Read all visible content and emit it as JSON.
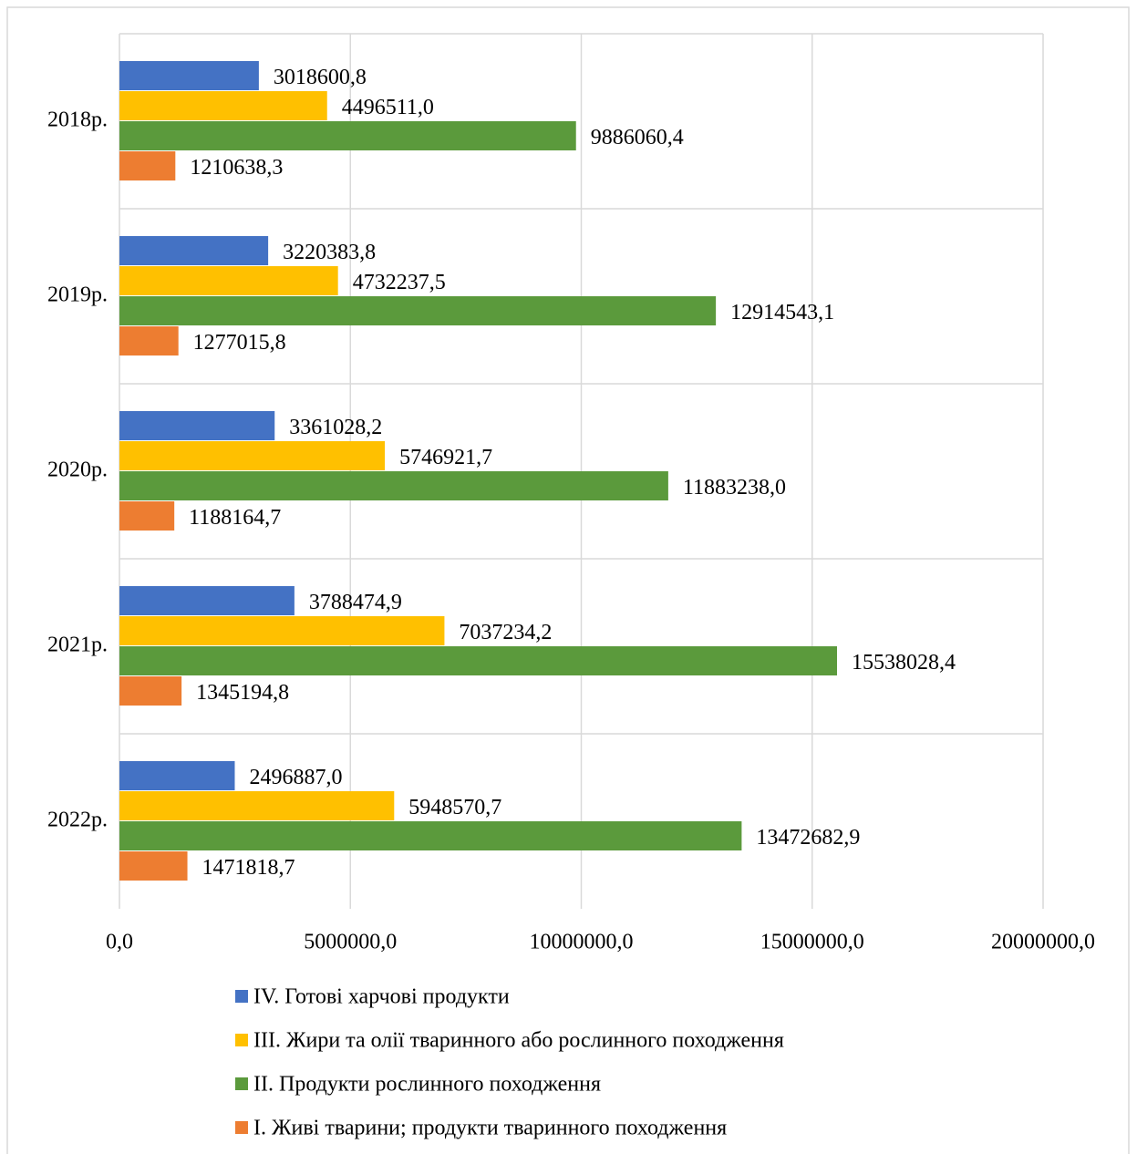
{
  "chart_data": {
    "type": "bar",
    "orientation": "horizontal",
    "categories": [
      "2018р.",
      "2019р.",
      "2020р.",
      "2021р.",
      "2022р."
    ],
    "series": [
      {
        "name": "IV. Готові харчові продукти",
        "color": "#4472c4",
        "values": [
          3018600.8,
          3220383.8,
          3361028.2,
          3788474.9,
          2496887.0
        ],
        "value_labels": [
          "3018600,8",
          "3220383,8",
          "3361028,2",
          "3788474,9",
          "2496887,0"
        ]
      },
      {
        "name": "III. Жири та олії тваринного або рослинного походження",
        "color": "#ffc000",
        "values": [
          4496511.0,
          4732237.5,
          5746921.7,
          7037234.2,
          5948570.7
        ],
        "value_labels": [
          "4496511,0",
          "4732237,5",
          "5746921,7",
          "7037234,2",
          "5948570,7"
        ]
      },
      {
        "name": "II. Продукти рослинного походження",
        "color": "#5b9a3c",
        "values": [
          9886060.4,
          12914543.1,
          11883238.0,
          15538028.4,
          13472682.9
        ],
        "value_labels": [
          "9886060,4",
          "12914543,1",
          "11883238,0",
          "15538028,4",
          "13472682,9"
        ]
      },
      {
        "name": "I. Живі тварини; продукти тваринного походження",
        "color": "#ed7d31",
        "values": [
          1210638.3,
          1277015.8,
          1188164.7,
          1345194.8,
          1471818.7
        ],
        "value_labels": [
          "1210638,3",
          "1277015,8",
          "1188164,7",
          "1345194,8",
          "1471818,7"
        ]
      }
    ],
    "xlim": [
      0,
      20000000
    ],
    "xticks": [
      {
        "value": 0,
        "label": "0,0"
      },
      {
        "value": 5000000,
        "label": "5000000,0"
      },
      {
        "value": 10000000,
        "label": "10000000,0"
      },
      {
        "value": 15000000,
        "label": "15000000,0"
      },
      {
        "value": 20000000,
        "label": "20000000,0"
      }
    ],
    "grid": true,
    "legend": "bottom"
  }
}
